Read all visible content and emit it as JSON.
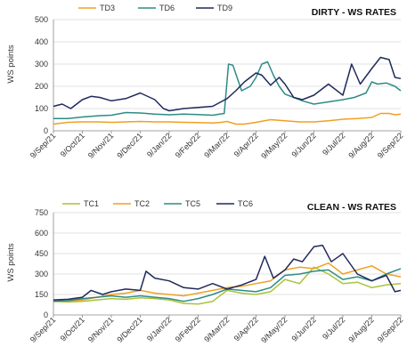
{
  "chart_data": [
    {
      "type": "line",
      "title": "DIRTY - WS RATES",
      "ylabel": "WS points",
      "xlabel": "",
      "ylim": [
        0,
        500
      ],
      "y_ticks": [
        "0",
        "100",
        "200",
        "300",
        "400",
        "500"
      ],
      "y_tick_values": [
        0,
        100,
        200,
        300,
        400,
        500
      ],
      "x_ticks": [
        "9/Sep/21",
        "9/Oct/21",
        "9/Nov/21",
        "9/Dec/21",
        "9/Jan/22",
        "9/Feb/22",
        "9/Mar/22",
        "9/Apr/22",
        "9/May/22",
        "9/Jun/22",
        "9/Jul/22",
        "9/Aug/22",
        "9/Sep/22"
      ],
      "x_range": [
        0,
        12
      ],
      "grid": true,
      "legend_position": "top",
      "series": [
        {
          "name": "TD3",
          "color": "#F0A020",
          "x": [
            0,
            0.5,
            1,
            1.5,
            2,
            2.5,
            3,
            3.5,
            4,
            4.5,
            5,
            5.5,
            5.8,
            6,
            6.3,
            6.6,
            7,
            7.5,
            8,
            8.5,
            9,
            9.5,
            10,
            10.5,
            11,
            11.3,
            11.6,
            11.8,
            12
          ],
          "y": [
            30,
            38,
            40,
            40,
            38,
            40,
            42,
            40,
            40,
            38,
            37,
            35,
            38,
            42,
            30,
            30,
            38,
            50,
            45,
            40,
            40,
            45,
            52,
            55,
            60,
            78,
            78,
            72,
            75
          ]
        },
        {
          "name": "TD6",
          "color": "#2E8B84",
          "x": [
            0,
            0.5,
            1,
            1.3,
            1.6,
            2,
            2.5,
            3,
            3.5,
            4,
            4.5,
            5,
            5.5,
            5.9,
            6.05,
            6.2,
            6.5,
            6.8,
            7,
            7.2,
            7.4,
            7.6,
            7.8,
            8,
            8.3,
            8.6,
            9,
            9.5,
            10,
            10.4,
            10.8,
            11,
            11.2,
            11.5,
            11.8,
            12
          ],
          "y": [
            55,
            55,
            62,
            65,
            68,
            70,
            82,
            80,
            75,
            72,
            75,
            73,
            70,
            78,
            300,
            295,
            180,
            200,
            240,
            300,
            310,
            250,
            200,
            165,
            150,
            135,
            120,
            130,
            140,
            150,
            170,
            220,
            210,
            215,
            200,
            180
          ]
        },
        {
          "name": "TD9",
          "color": "#1F2A5C",
          "x": [
            0,
            0.3,
            0.6,
            1,
            1.3,
            1.6,
            2,
            2.5,
            3,
            3.5,
            3.8,
            4,
            4.5,
            5,
            5.5,
            6,
            6.3,
            6.6,
            7,
            7.2,
            7.5,
            7.8,
            8,
            8.3,
            8.6,
            9,
            9.5,
            10,
            10.3,
            10.6,
            11,
            11.3,
            11.6,
            11.8,
            12
          ],
          "y": [
            110,
            120,
            100,
            140,
            155,
            150,
            135,
            145,
            170,
            140,
            100,
            90,
            100,
            105,
            110,
            145,
            180,
            220,
            260,
            250,
            205,
            240,
            210,
            150,
            140,
            160,
            210,
            160,
            300,
            210,
            280,
            330,
            320,
            240,
            235
          ]
        }
      ]
    },
    {
      "type": "line",
      "title": "CLEAN - WS RATES",
      "ylabel": "WS points",
      "xlabel": "",
      "ylim": [
        0,
        750
      ],
      "y_ticks": [
        "0",
        "150",
        "300",
        "450",
        "600",
        "750"
      ],
      "y_tick_values": [
        0,
        150,
        300,
        450,
        600,
        750
      ],
      "x_ticks": [
        "9/Sep/21",
        "9/Oct/21",
        "9/Nov/21",
        "9/Dec/21",
        "9/Jan/22",
        "9/Feb/22",
        "9/Mar/22",
        "9/Apr/22",
        "9/May/22",
        "9/Jun/22",
        "9/Jul/22",
        "9/Aug/22",
        "9/Sep/22"
      ],
      "x_range": [
        0,
        12
      ],
      "grid": true,
      "legend_position": "top",
      "series": [
        {
          "name": "TC1",
          "color": "#A8C43C",
          "x": [
            0,
            0.5,
            1,
            1.5,
            2,
            2.5,
            3,
            3.5,
            4,
            4.5,
            5,
            5.5,
            6,
            6.5,
            7,
            7.5,
            8,
            8.5,
            9,
            9.5,
            10,
            10.5,
            11,
            11.5,
            12
          ],
          "y": [
            100,
            95,
            100,
            110,
            120,
            115,
            125,
            120,
            110,
            85,
            80,
            100,
            180,
            160,
            150,
            170,
            260,
            230,
            350,
            300,
            230,
            240,
            200,
            220,
            230
          ]
        },
        {
          "name": "TC2",
          "color": "#F0A020",
          "x": [
            0,
            0.5,
            1,
            1.5,
            2,
            2.5,
            3,
            3.5,
            4,
            4.5,
            5,
            5.5,
            6,
            6.5,
            7,
            7.5,
            8,
            8.5,
            9,
            9.5,
            10,
            10.5,
            11,
            11.5,
            12
          ],
          "y": [
            110,
            100,
            110,
            130,
            150,
            160,
            180,
            160,
            150,
            140,
            160,
            180,
            200,
            210,
            230,
            250,
            330,
            350,
            340,
            380,
            300,
            330,
            360,
            300,
            280
          ]
        },
        {
          "name": "TC5",
          "color": "#2E8B84",
          "x": [
            0,
            0.5,
            1,
            1.5,
            2,
            2.5,
            3,
            3.5,
            4,
            4.5,
            5,
            5.5,
            6,
            6.5,
            7,
            7.5,
            8,
            8.5,
            9,
            9.5,
            10,
            10.5,
            11,
            11.5,
            12
          ],
          "y": [
            100,
            105,
            120,
            130,
            140,
            130,
            140,
            130,
            120,
            100,
            120,
            150,
            190,
            180,
            170,
            200,
            290,
            300,
            320,
            330,
            260,
            280,
            250,
            300,
            340
          ]
        },
        {
          "name": "TC6",
          "color": "#1F2A5C",
          "x": [
            0,
            0.5,
            1,
            1.3,
            1.7,
            2,
            2.5,
            3,
            3.2,
            3.5,
            4,
            4.5,
            5,
            5.5,
            6,
            6.5,
            7,
            7.3,
            7.6,
            8,
            8.3,
            8.6,
            9,
            9.3,
            9.6,
            10,
            10.5,
            11,
            11.5,
            11.8,
            12
          ],
          "y": [
            110,
            115,
            130,
            180,
            150,
            170,
            190,
            180,
            320,
            270,
            250,
            200,
            190,
            230,
            190,
            220,
            260,
            430,
            270,
            330,
            410,
            390,
            500,
            510,
            390,
            450,
            300,
            250,
            290,
            170,
            180
          ]
        }
      ]
    }
  ]
}
